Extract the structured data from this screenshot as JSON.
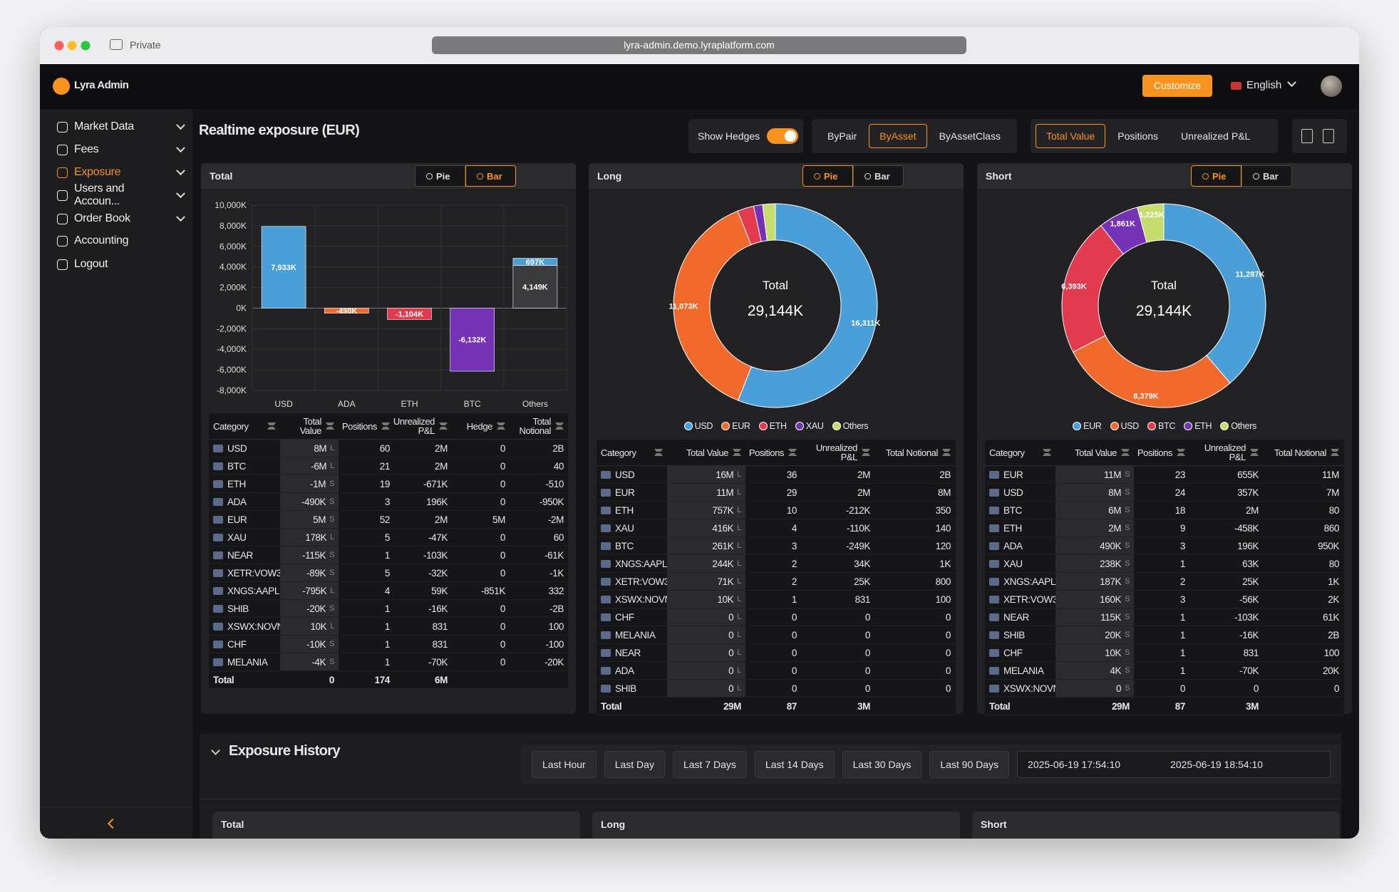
{
  "browser": {
    "private": "Private",
    "url": "lyra-admin.demo.lyraplatform.com"
  },
  "app": {
    "name": "Lyra Admin",
    "customize": "Customize",
    "language": "English"
  },
  "sidebar": {
    "items": [
      "Market Data",
      "Fees",
      "Exposure",
      "Users and Accoun...",
      "Order Book",
      "Accounting",
      "Logout"
    ],
    "active": 2,
    "expandable": [
      true,
      true,
      true,
      true,
      true,
      false,
      false
    ]
  },
  "page": {
    "title": "Realtime exposure (EUR)",
    "show_hedges": "Show Hedges",
    "hedges_on": true,
    "group_by": [
      "ByPair",
      "ByAsset",
      "ByAssetClass"
    ],
    "group_active": 1,
    "metric": [
      "Total Value",
      "Positions",
      "Unrealized P&L"
    ],
    "metric_active": 0
  },
  "panels": [
    {
      "title": "Total",
      "toggle": [
        "Pie",
        "Bar"
      ],
      "toggle_active": 1,
      "chart": {
        "type": "bar",
        "categories": [
          "USD",
          "ADA",
          "ETH",
          "BTC",
          "Others"
        ],
        "series": [
          {
            "colors": [
              "#4a9fd9",
              "#f26a2b",
              "#e23a4e",
              "#7432b5",
              "#3b3b3d"
            ],
            "values": [
              7933,
              -490,
              -1104,
              -6132,
              4149
            ],
            "value_labels": [
              "7,933K",
              "-490K",
              "-1,104K",
              "-6,132K",
              "4,149K"
            ]
          },
          {
            "colors": [
              "#4a9fd9",
              "#4a9fd9",
              "#4a9fd9",
              "#4a9fd9",
              "#4a9fd9"
            ],
            "values": [
              null,
              null,
              null,
              null,
              697
            ],
            "value_labels": [
              null,
              null,
              null,
              null,
              "697K"
            ]
          }
        ],
        "ylim": [
          -8000,
          10000
        ],
        "yticks": [
          {
            "value": -8000,
            "label": "-8,000K"
          },
          {
            "value": -6000,
            "label": "-6,000K"
          },
          {
            "value": -4000,
            "label": "-4,000K"
          },
          {
            "value": -2000,
            "label": "-2,000K"
          },
          {
            "value": 0,
            "label": "0K"
          },
          {
            "value": 2000,
            "label": "2,000K"
          },
          {
            "value": 4000,
            "label": "4,000K"
          },
          {
            "value": 6000,
            "label": "6,000K"
          },
          {
            "value": 8000,
            "label": "8,000K"
          },
          {
            "value": 10000,
            "label": "10,000K"
          }
        ],
        "grid": true
      },
      "table": {
        "columns": [
          "Category",
          "Total Value",
          "Positions",
          "Unrealized P&L",
          "Hedge",
          "Total Notional"
        ],
        "rows": [
          [
            "USD",
            "8M",
            "L",
            "60",
            "2M",
            "0",
            "2B"
          ],
          [
            "BTC",
            "-6M",
            "L",
            "21",
            "2M",
            "0",
            "40"
          ],
          [
            "ETH",
            "-1M",
            "S",
            "19",
            "-671K",
            "0",
            "-510"
          ],
          [
            "ADA",
            "-490K",
            "S",
            "3",
            "196K",
            "0",
            "-950K"
          ],
          [
            "EUR",
            "5M",
            "S",
            "52",
            "2M",
            "5M",
            "-2M"
          ],
          [
            "XAU",
            "178K",
            "L",
            "5",
            "-47K",
            "0",
            "60"
          ],
          [
            "NEAR",
            "-115K",
            "S",
            "1",
            "-103K",
            "0",
            "-61K"
          ],
          [
            "XETR:VOW3",
            "-89K",
            "S",
            "5",
            "-32K",
            "0",
            "-1K"
          ],
          [
            "XNGS:AAPL",
            "-795K",
            "L",
            "4",
            "59K",
            "-851K",
            "332"
          ],
          [
            "SHIB",
            "-20K",
            "S",
            "1",
            "-16K",
            "0",
            "-2B"
          ],
          [
            "XSWX:NOVN",
            "10K",
            "L",
            "1",
            "831",
            "0",
            "100"
          ],
          [
            "CHF",
            "-10K",
            "S",
            "1",
            "831",
            "0",
            "-100"
          ],
          [
            "MELANIA",
            "-4K",
            "S",
            "1",
            "-70K",
            "0",
            "-20K"
          ]
        ],
        "total": [
          "Total",
          "0",
          "174",
          "6M"
        ]
      }
    },
    {
      "title": "Long",
      "toggle": [
        "Pie",
        "Bar"
      ],
      "toggle_active": 0,
      "chart": {
        "type": "pie",
        "categories": [
          "USD",
          "EUR",
          "ETH",
          "XAU",
          "Others"
        ],
        "values": [
          16311,
          11073,
          757,
          416,
          587
        ],
        "value_labels": [
          "16,311K",
          "11,073K",
          null,
          null,
          null
        ],
        "colors": [
          "#4a9fd9",
          "#f26a2b",
          "#e23a4e",
          "#7432b5",
          "#c5dc6e"
        ],
        "center_label": "Total",
        "center_value": "29,144K",
        "legend": true
      },
      "table": {
        "columns": [
          "Category",
          "Total Value",
          "Positions",
          "Unrealized P&L",
          "Total Notional"
        ],
        "rows": [
          [
            "USD",
            "16M",
            "L",
            "36",
            "2M",
            "2B"
          ],
          [
            "EUR",
            "11M",
            "L",
            "29",
            "2M",
            "8M"
          ],
          [
            "ETH",
            "757K",
            "L",
            "10",
            "-212K",
            "350"
          ],
          [
            "XAU",
            "416K",
            "L",
            "4",
            "-110K",
            "140"
          ],
          [
            "BTC",
            "261K",
            "L",
            "3",
            "-249K",
            "120"
          ],
          [
            "XNGS:AAPL",
            "244K",
            "L",
            "2",
            "34K",
            "1K"
          ],
          [
            "XETR:VOW3",
            "71K",
            "L",
            "2",
            "25K",
            "800"
          ],
          [
            "XSWX:NOVN",
            "10K",
            "L",
            "1",
            "831",
            "100"
          ],
          [
            "CHF",
            "0",
            "L",
            "0",
            "0",
            "0"
          ],
          [
            "MELANIA",
            "0",
            "L",
            "0",
            "0",
            "0"
          ],
          [
            "NEAR",
            "0",
            "L",
            "0",
            "0",
            "0"
          ],
          [
            "ADA",
            "0",
            "L",
            "0",
            "0",
            "0"
          ],
          [
            "SHIB",
            "0",
            "L",
            "0",
            "0",
            "0"
          ]
        ],
        "total": [
          "Total",
          "29M",
          "87",
          "3M"
        ]
      }
    },
    {
      "title": "Short",
      "toggle": [
        "Pie",
        "Bar"
      ],
      "toggle_active": 0,
      "chart": {
        "type": "pie",
        "categories": [
          "EUR",
          "USD",
          "BTC",
          "ETH",
          "Others"
        ],
        "values": [
          11287,
          8379,
          6393,
          1861,
          1225
        ],
        "value_labels": [
          "11,287K",
          "8,379K",
          "6,393K",
          "1,861K",
          "1,225K"
        ],
        "colors": [
          "#4a9fd9",
          "#f26a2b",
          "#e23a4e",
          "#7432b5",
          "#c5dc6e"
        ],
        "center_label": "Total",
        "center_value": "29,144K",
        "legend": true
      },
      "table": {
        "columns": [
          "Category",
          "Total Value",
          "Positions",
          "Unrealized P&L",
          "Total Notional"
        ],
        "rows": [
          [
            "EUR",
            "11M",
            "S",
            "23",
            "655K",
            "11M"
          ],
          [
            "USD",
            "8M",
            "S",
            "24",
            "357K",
            "7M"
          ],
          [
            "BTC",
            "6M",
            "S",
            "18",
            "2M",
            "80"
          ],
          [
            "ETH",
            "2M",
            "S",
            "9",
            "-458K",
            "860"
          ],
          [
            "ADA",
            "490K",
            "S",
            "3",
            "196K",
            "950K"
          ],
          [
            "XAU",
            "238K",
            "S",
            "1",
            "63K",
            "80"
          ],
          [
            "XNGS:AAPL",
            "187K",
            "S",
            "2",
            "25K",
            "1K"
          ],
          [
            "XETR:VOW3",
            "160K",
            "S",
            "3",
            "-56K",
            "2K"
          ],
          [
            "NEAR",
            "115K",
            "S",
            "1",
            "-103K",
            "61K"
          ],
          [
            "SHIB",
            "20K",
            "S",
            "1",
            "-16K",
            "2B"
          ],
          [
            "CHF",
            "10K",
            "S",
            "1",
            "831",
            "100"
          ],
          [
            "MELANIA",
            "4K",
            "S",
            "1",
            "-70K",
            "20K"
          ],
          [
            "XSWX:NOVN",
            "0",
            "S",
            "0",
            "0",
            "0"
          ]
        ],
        "total": [
          "Total",
          "29M",
          "87",
          "3M"
        ]
      }
    }
  ],
  "history": {
    "title": "Exposure History",
    "ranges": [
      "Last Hour",
      "Last Day",
      "Last 7 Days",
      "Last 14 Days",
      "Last 30 Days",
      "Last 90 Days"
    ],
    "from": "2025-06-19 17:54:10",
    "to": "2025-06-19 18:54:10",
    "panels": [
      "Total",
      "Long",
      "Short"
    ]
  }
}
